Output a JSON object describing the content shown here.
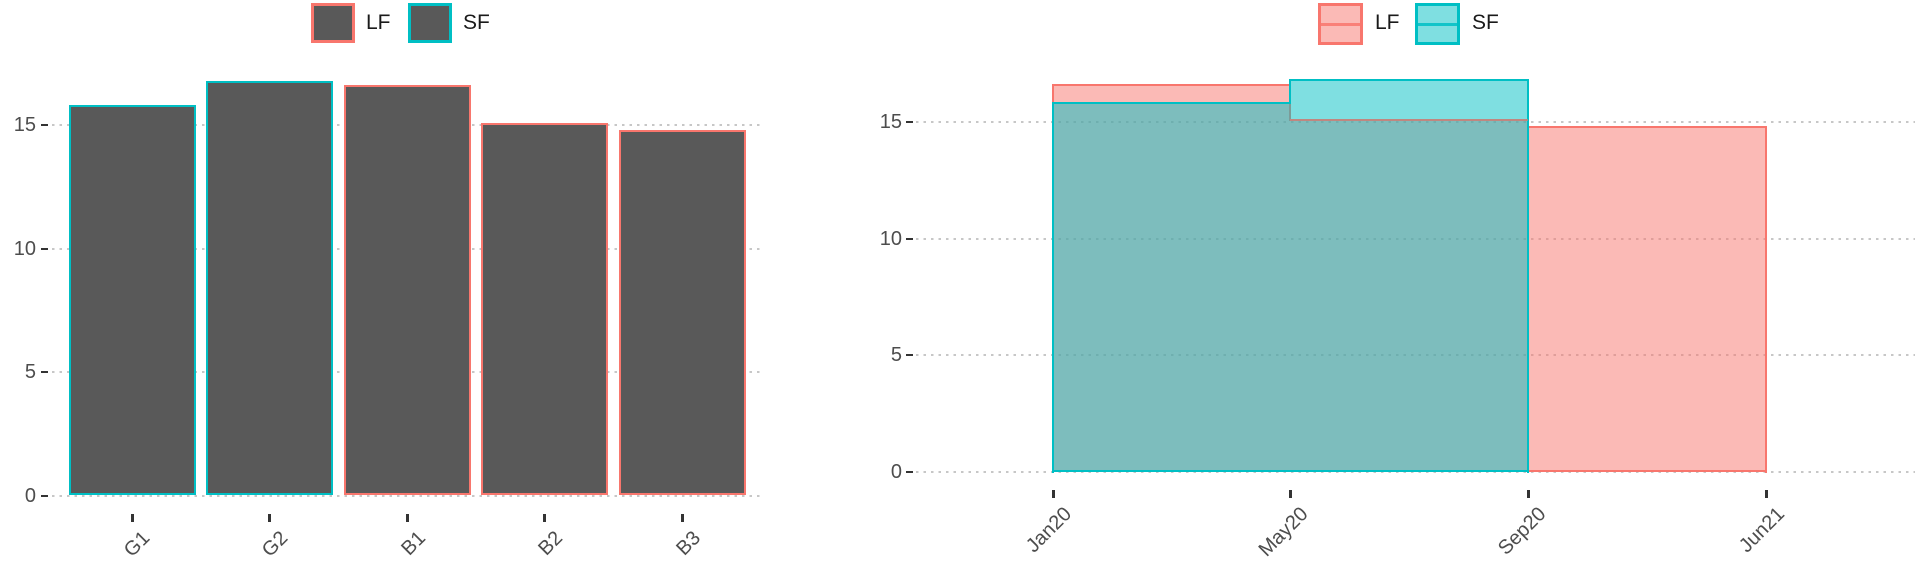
{
  "colors": {
    "lf": "#F8766D",
    "sf": "#00BFC4",
    "bar_fill": "#595959",
    "grid": "#C7C7C7",
    "tick_text": "#4D4D4D",
    "legend_text": "#1A1A1A",
    "fill_alpha": 0.5
  },
  "chart_data": [
    {
      "type": "bar",
      "title": "",
      "categories": [
        "G1",
        "G2",
        "B1",
        "B2",
        "B3"
      ],
      "values": [
        15.8,
        16.8,
        16.6,
        15.1,
        14.8
      ],
      "bar_series": [
        "SF",
        "SF",
        "LF",
        "LF",
        "LF"
      ],
      "yticks": [
        0,
        5,
        10,
        15
      ],
      "ylim": [
        0,
        17.8
      ],
      "xlabel": "",
      "ylabel": "",
      "grid": "horizontal-dotted",
      "legend_position": "top",
      "legend": [
        {
          "label": "LF",
          "series": "LF"
        },
        {
          "label": "SF",
          "series": "SF"
        }
      ]
    },
    {
      "type": "area",
      "title": "",
      "x_tick_labels": [
        "Jan20",
        "May20",
        "Sep20",
        "Jun21"
      ],
      "yticks": [
        0,
        5,
        10,
        15
      ],
      "ylim": [
        0,
        17.8
      ],
      "xlabel": "",
      "ylabel": "",
      "grid": "horizontal-dotted",
      "legend_position": "top",
      "legend": [
        {
          "label": "LF",
          "series": "LF"
        },
        {
          "label": "SF",
          "series": "SF"
        }
      ],
      "series": [
        {
          "name": "LF",
          "steps": [
            {
              "x_from": "Jan20",
              "x_to": "May20",
              "value": 16.6
            },
            {
              "x_from": "May20",
              "x_to": "Sep20",
              "value": 15.1
            },
            {
              "x_from": "Sep20",
              "x_to": "Jun21",
              "value": 14.8
            }
          ]
        },
        {
          "name": "SF",
          "steps": [
            {
              "x_from": "Jan20",
              "x_to": "May20",
              "value": 15.8
            },
            {
              "x_from": "May20",
              "x_to": "Sep20",
              "value": 16.8
            }
          ]
        }
      ]
    }
  ]
}
